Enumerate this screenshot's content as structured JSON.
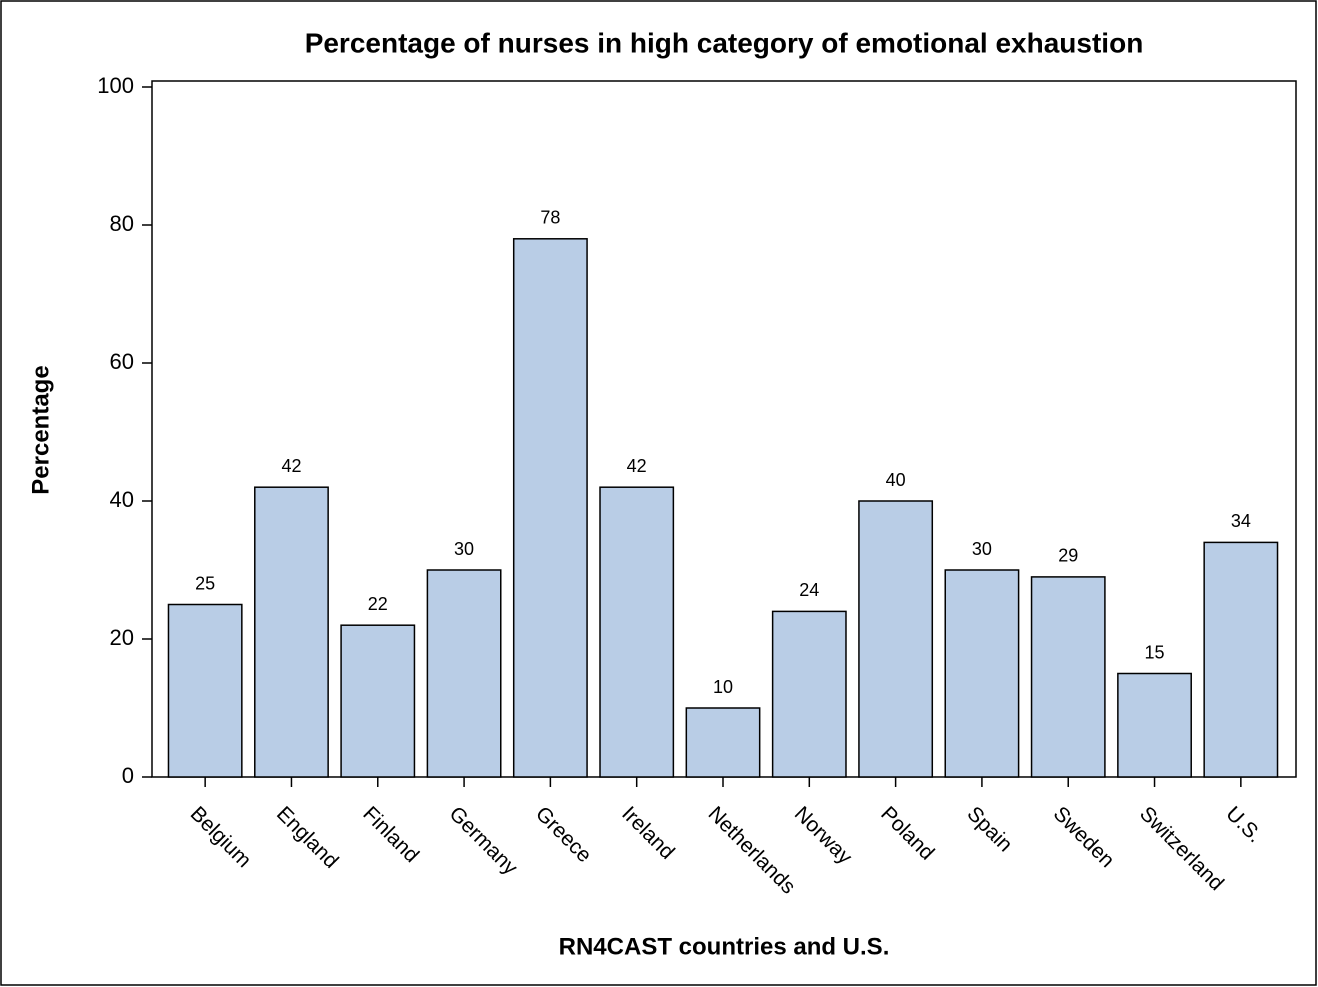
{
  "chart_data": {
    "type": "bar",
    "title": "Percentage of nurses in high category of emotional exhaustion",
    "xlabel": "RN4CAST countries and U.S.",
    "ylabel": "Percentage",
    "categories": [
      "Belgium",
      "England",
      "Finland",
      "Germany",
      "Greece",
      "Ireland",
      "Netherlands",
      "Norway",
      "Poland",
      "Spain",
      "Sweden",
      "Switzerland",
      "U.S."
    ],
    "values": [
      25,
      42,
      22,
      30,
      78,
      42,
      10,
      24,
      40,
      30,
      29,
      15,
      34
    ],
    "color": "#b9cde6",
    "ylim": [
      0,
      100
    ],
    "yticks": [
      0,
      20,
      40,
      60,
      80,
      100
    ],
    "grid": false
  }
}
